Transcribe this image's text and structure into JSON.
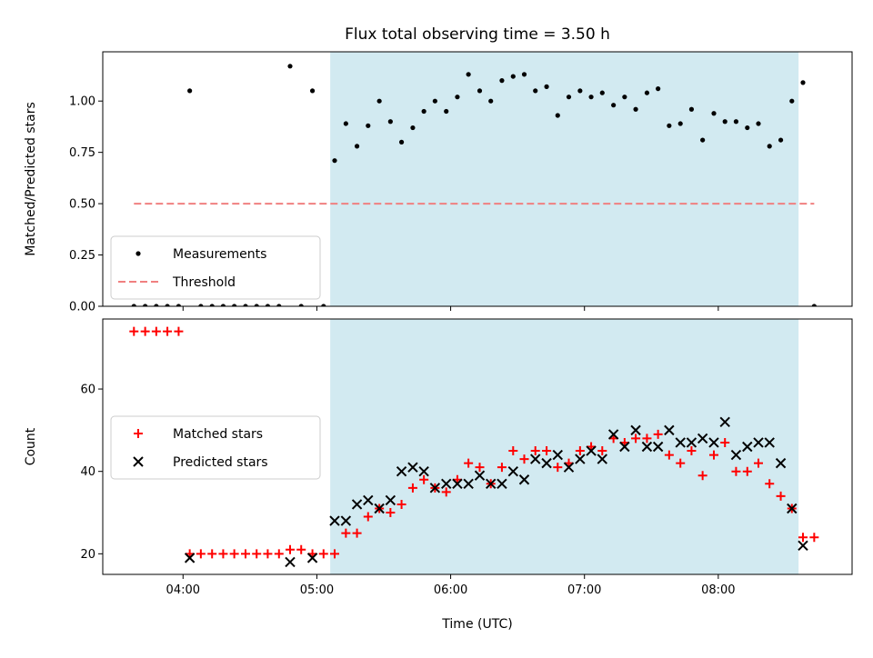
{
  "chart_data": {
    "type": "scatter",
    "title": "Flux total observing time = 3.50 h",
    "xlabel": "Time (UTC)",
    "x_ticks": [
      "04:00",
      "05:00",
      "06:00",
      "07:00",
      "08:00"
    ],
    "x_tick_hours": [
      4,
      5,
      6,
      7,
      8
    ],
    "xlim_hours": [
      3.4,
      9.0
    ],
    "shaded_interval_hours": [
      5.1,
      8.6
    ],
    "shade_color": "#add8e6",
    "panels": [
      {
        "ylabel": "Matched/Predicted stars",
        "ylim": [
          0,
          1.24
        ],
        "yticks": [
          0.0,
          0.25,
          0.5,
          0.75,
          1.0
        ],
        "ytick_labels": [
          "0.00",
          "0.25",
          "0.50",
          "0.75",
          "1.00"
        ],
        "legend": {
          "placement": "lower-left",
          "entries": [
            "Measurements",
            "Threshold"
          ]
        },
        "series": [
          {
            "name": "Measurements",
            "marker": "dot",
            "color": "#000000",
            "points": [
              [
                3.633,
                0.0
              ],
              [
                3.717,
                0.0
              ],
              [
                3.8,
                0.0
              ],
              [
                3.883,
                0.0
              ],
              [
                3.967,
                0.0
              ],
              [
                4.05,
                1.05
              ],
              [
                4.133,
                0.0
              ],
              [
                4.217,
                0.0
              ],
              [
                4.3,
                0.0
              ],
              [
                4.383,
                0.0
              ],
              [
                4.467,
                0.0
              ],
              [
                4.55,
                0.0
              ],
              [
                4.633,
                0.0
              ],
              [
                4.717,
                0.0
              ],
              [
                4.8,
                1.17
              ],
              [
                4.883,
                0.0
              ],
              [
                4.967,
                1.05
              ],
              [
                5.05,
                0.0
              ],
              [
                5.133,
                0.71
              ],
              [
                5.217,
                0.89
              ],
              [
                5.3,
                0.78
              ],
              [
                5.383,
                0.88
              ],
              [
                5.467,
                1.0
              ],
              [
                5.55,
                0.9
              ],
              [
                5.633,
                0.8
              ],
              [
                5.717,
                0.87
              ],
              [
                5.8,
                0.95
              ],
              [
                5.883,
                1.0
              ],
              [
                5.967,
                0.95
              ],
              [
                6.05,
                1.02
              ],
              [
                6.133,
                1.13
              ],
              [
                6.217,
                1.05
              ],
              [
                6.3,
                1.0
              ],
              [
                6.383,
                1.1
              ],
              [
                6.467,
                1.12
              ],
              [
                6.55,
                1.13
              ],
              [
                6.633,
                1.05
              ],
              [
                6.717,
                1.07
              ],
              [
                6.8,
                0.93
              ],
              [
                6.883,
                1.02
              ],
              [
                6.967,
                1.05
              ],
              [
                7.05,
                1.02
              ],
              [
                7.133,
                1.04
              ],
              [
                7.217,
                0.98
              ],
              [
                7.3,
                1.02
              ],
              [
                7.383,
                0.96
              ],
              [
                7.467,
                1.04
              ],
              [
                7.55,
                1.06
              ],
              [
                7.633,
                0.88
              ],
              [
                7.717,
                0.89
              ],
              [
                7.8,
                0.96
              ],
              [
                7.883,
                0.81
              ],
              [
                7.967,
                0.94
              ],
              [
                8.05,
                0.9
              ],
              [
                8.133,
                0.9
              ],
              [
                8.217,
                0.87
              ],
              [
                8.3,
                0.89
              ],
              [
                8.383,
                0.78
              ],
              [
                8.467,
                0.81
              ],
              [
                8.55,
                1.0
              ],
              [
                8.633,
                1.09
              ],
              [
                8.717,
                0.0
              ]
            ]
          },
          {
            "name": "Threshold",
            "marker": "dashed-line",
            "color": "#f08080",
            "points": [
              [
                3.633,
                0.5
              ],
              [
                8.717,
                0.5
              ]
            ]
          }
        ]
      },
      {
        "ylabel": "Count",
        "ylim": [
          15,
          77
        ],
        "yticks": [
          20,
          40,
          60
        ],
        "ytick_labels": [
          "20",
          "40",
          "60"
        ],
        "legend": {
          "placement": "center-left",
          "entries": [
            "Matched stars",
            "Predicted stars"
          ]
        },
        "series": [
          {
            "name": "Matched stars",
            "marker": "plus",
            "color": "#ff0000",
            "points": [
              [
                3.633,
                74
              ],
              [
                3.717,
                74
              ],
              [
                3.8,
                74
              ],
              [
                3.883,
                74
              ],
              [
                3.967,
                74
              ],
              [
                4.05,
                20
              ],
              [
                4.133,
                20
              ],
              [
                4.217,
                20
              ],
              [
                4.3,
                20
              ],
              [
                4.383,
                20
              ],
              [
                4.467,
                20
              ],
              [
                4.55,
                20
              ],
              [
                4.633,
                20
              ],
              [
                4.717,
                20
              ],
              [
                4.8,
                21
              ],
              [
                4.883,
                21
              ],
              [
                4.967,
                20
              ],
              [
                5.05,
                20
              ],
              [
                5.133,
                20
              ],
              [
                5.217,
                25
              ],
              [
                5.3,
                25
              ],
              [
                5.383,
                29
              ],
              [
                5.467,
                31
              ],
              [
                5.55,
                30
              ],
              [
                5.633,
                32
              ],
              [
                5.717,
                36
              ],
              [
                5.8,
                38
              ],
              [
                5.883,
                36
              ],
              [
                5.967,
                35
              ],
              [
                6.05,
                38
              ],
              [
                6.133,
                42
              ],
              [
                6.217,
                41
              ],
              [
                6.3,
                37
              ],
              [
                6.383,
                41
              ],
              [
                6.467,
                45
              ],
              [
                6.55,
                43
              ],
              [
                6.633,
                45
              ],
              [
                6.717,
                45
              ],
              [
                6.8,
                41
              ],
              [
                6.883,
                42
              ],
              [
                6.967,
                45
              ],
              [
                7.05,
                46
              ],
              [
                7.133,
                45
              ],
              [
                7.217,
                48
              ],
              [
                7.3,
                47
              ],
              [
                7.383,
                48
              ],
              [
                7.467,
                48
              ],
              [
                7.55,
                49
              ],
              [
                7.633,
                44
              ],
              [
                7.717,
                42
              ],
              [
                7.8,
                45
              ],
              [
                7.883,
                39
              ],
              [
                7.967,
                44
              ],
              [
                8.05,
                47
              ],
              [
                8.133,
                40
              ],
              [
                8.217,
                40
              ],
              [
                8.3,
                42
              ],
              [
                8.383,
                37
              ],
              [
                8.467,
                34
              ],
              [
                8.55,
                31
              ],
              [
                8.633,
                24
              ],
              [
                8.717,
                24
              ]
            ]
          },
          {
            "name": "Predicted stars",
            "marker": "x",
            "color": "#000000",
            "points": [
              [
                4.05,
                19
              ],
              [
                4.8,
                18
              ],
              [
                4.967,
                19
              ],
              [
                5.133,
                28
              ],
              [
                5.217,
                28
              ],
              [
                5.3,
                32
              ],
              [
                5.383,
                33
              ],
              [
                5.467,
                31
              ],
              [
                5.55,
                33
              ],
              [
                5.633,
                40
              ],
              [
                5.717,
                41
              ],
              [
                5.8,
                40
              ],
              [
                5.883,
                36
              ],
              [
                5.967,
                37
              ],
              [
                6.05,
                37
              ],
              [
                6.133,
                37
              ],
              [
                6.217,
                39
              ],
              [
                6.3,
                37
              ],
              [
                6.383,
                37
              ],
              [
                6.467,
                40
              ],
              [
                6.55,
                38
              ],
              [
                6.633,
                43
              ],
              [
                6.717,
                42
              ],
              [
                6.8,
                44
              ],
              [
                6.883,
                41
              ],
              [
                6.967,
                43
              ],
              [
                7.05,
                45
              ],
              [
                7.133,
                43
              ],
              [
                7.217,
                49
              ],
              [
                7.3,
                46
              ],
              [
                7.383,
                50
              ],
              [
                7.467,
                46
              ],
              [
                7.55,
                46
              ],
              [
                7.633,
                50
              ],
              [
                7.717,
                47
              ],
              [
                7.8,
                47
              ],
              [
                7.883,
                48
              ],
              [
                7.967,
                47
              ],
              [
                8.05,
                52
              ],
              [
                8.133,
                44
              ],
              [
                8.217,
                46
              ],
              [
                8.3,
                47
              ],
              [
                8.383,
                47
              ],
              [
                8.467,
                42
              ],
              [
                8.55,
                31
              ],
              [
                8.633,
                22
              ]
            ]
          }
        ]
      }
    ]
  }
}
